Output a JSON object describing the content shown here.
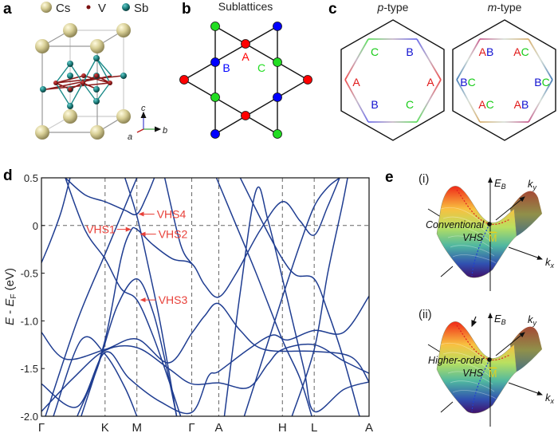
{
  "panel_labels": {
    "a": "a",
    "b": "b",
    "c": "c",
    "d": "d",
    "e": "e"
  },
  "panel_a": {
    "legend": [
      {
        "label": "Cs",
        "color": "#d8cf96"
      },
      {
        "label": "V",
        "color": "#7a1010"
      },
      {
        "label": "Sb",
        "color": "#1a7a78"
      }
    ],
    "axes": {
      "a": "a",
      "b": "b",
      "c": "c"
    }
  },
  "panel_b": {
    "title": "Sublattices",
    "labels": {
      "A": "A",
      "B": "B",
      "C": "C"
    },
    "colors": {
      "A": "#ff0000",
      "B": "#0000ff",
      "C": "#22dd22"
    }
  },
  "panel_c": {
    "p_type": {
      "title_italic": "p",
      "title_rest": "-type",
      "vertex_labels": [
        [
          "A"
        ],
        [
          "C"
        ],
        [
          "B"
        ],
        [
          "A"
        ],
        [
          "C"
        ],
        [
          "B"
        ]
      ]
    },
    "m_type": {
      "title_italic": "m",
      "title_rest": "-type",
      "vertex_labels": [
        [
          "B",
          "C"
        ],
        [
          "A",
          "B"
        ],
        [
          "A",
          "C"
        ],
        [
          "B",
          "C"
        ],
        [
          "A",
          "B"
        ],
        [
          "A",
          "C"
        ]
      ]
    }
  },
  "chart_data": {
    "type": "line",
    "title": "",
    "ylabel": "E - E_F (eV)",
    "ylabel_parts": {
      "E": "E",
      "mid": " - ",
      "EF": "E",
      "sub": "F",
      "unit": " (eV)"
    },
    "ylim": [
      -2.0,
      0.5
    ],
    "yticks": [
      0.5,
      0,
      -0.5,
      -1.0,
      -1.5,
      -2.0
    ],
    "ytick_labels": [
      "0.5",
      "0",
      "-0.5",
      "-1.0",
      "-1.5",
      "-2.0"
    ],
    "kpath": [
      {
        "label": "Γ",
        "k": 0
      },
      {
        "label": "K",
        "k": 0.8
      },
      {
        "label": "M",
        "k": 1.2
      },
      {
        "label": "Γ",
        "k": 1.89
      },
      {
        "label": "A",
        "k": 2.23
      },
      {
        "label": "H",
        "k": 3.03
      },
      {
        "label": "L",
        "k": 3.43
      },
      {
        "label": "A",
        "k": 4.12
      }
    ],
    "fermi_level": 0,
    "grid": "dashed vertical lines at high-symmetry points",
    "line_color": "#1f3d91",
    "bands": [
      [
        [
          0,
          -0.39
        ],
        [
          0.12,
          -0.15
        ],
        [
          0.25,
          0.15
        ],
        [
          0.36,
          0.5
        ]
      ],
      [
        [
          0.3,
          0.5
        ],
        [
          0.55,
          0.32
        ],
        [
          0.8,
          0.25
        ],
        [
          1.05,
          0.16
        ],
        [
          1.2,
          0.12
        ],
        [
          1.32,
          0.3
        ],
        [
          1.42,
          0.5
        ]
      ],
      [
        [
          0.5,
          -2.0
        ],
        [
          0.8,
          -1.2
        ],
        [
          1.0,
          -0.35
        ],
        [
          1.12,
          -0.06
        ],
        [
          1.2,
          -0.04
        ],
        [
          1.4,
          -0.2
        ],
        [
          1.65,
          -0.35
        ],
        [
          1.89,
          -0.4
        ],
        [
          2.05,
          -0.62
        ],
        [
          2.23,
          -0.75
        ],
        [
          2.45,
          -0.5
        ],
        [
          2.75,
          -0.05
        ],
        [
          3.03,
          0.25
        ],
        [
          3.25,
          0.05
        ],
        [
          3.43,
          -0.1
        ],
        [
          3.6,
          0.2
        ],
        [
          3.75,
          0.5
        ]
      ],
      [
        [
          0.3,
          0.5
        ],
        [
          0.55,
          -0.05
        ],
        [
          0.8,
          -0.35
        ],
        [
          1.0,
          -0.66
        ],
        [
          1.2,
          -0.78
        ],
        [
          1.4,
          -1.15
        ],
        [
          1.6,
          -1.62
        ],
        [
          1.75,
          -2.0
        ]
      ],
      [
        [
          0.45,
          -2.0
        ],
        [
          0.7,
          -1.5
        ],
        [
          0.95,
          -0.85
        ],
        [
          1.2,
          -0.56
        ],
        [
          1.4,
          -0.9
        ],
        [
          1.55,
          -1.4
        ],
        [
          1.7,
          -2.0
        ]
      ],
      [
        [
          0,
          -1.95
        ],
        [
          0.4,
          -1.6
        ],
        [
          0.8,
          -1.31
        ],
        [
          1.2,
          -1.28
        ],
        [
          1.6,
          -1.5
        ],
        [
          1.89,
          -1.66
        ],
        [
          2.23,
          -1.65
        ],
        [
          2.6,
          -1.7
        ],
        [
          2.85,
          -1.45
        ],
        [
          3.03,
          -1.3
        ],
        [
          3.43,
          -1.25
        ],
        [
          3.8,
          -1.42
        ],
        [
          4.12,
          -1.55
        ]
      ],
      [
        [
          0,
          -1.12
        ],
        [
          0.3,
          -1.4
        ],
        [
          0.8,
          -1.3
        ],
        [
          1.2,
          -1.19
        ],
        [
          1.6,
          -1.44
        ],
        [
          1.89,
          -1.13
        ],
        [
          2.05,
          -0.95
        ],
        [
          2.23,
          -0.82
        ],
        [
          2.5,
          -1.1
        ],
        [
          2.8,
          -1.3
        ],
        [
          3.43,
          -1.32
        ],
        [
          3.9,
          -1.38
        ],
        [
          4.12,
          -1.64
        ]
      ],
      [
        [
          0,
          -1.66
        ],
        [
          0.45,
          -1.9
        ],
        [
          0.8,
          -1.33
        ],
        [
          1.1,
          -1.6
        ],
        [
          1.5,
          -1.85
        ],
        [
          1.89,
          -1.96
        ],
        [
          2.1,
          -1.58
        ],
        [
          2.23,
          -1.53
        ],
        [
          2.6,
          -1.3
        ],
        [
          2.9,
          -1.15
        ],
        [
          3.1,
          -1.2
        ],
        [
          3.43,
          -1.1
        ],
        [
          3.8,
          -1.12
        ],
        [
          4.12,
          -0.74
        ]
      ],
      [
        [
          0.05,
          -2.0
        ],
        [
          0.45,
          -1.0
        ],
        [
          0.8,
          -0.3
        ],
        [
          1.05,
          0.2
        ],
        [
          1.2,
          0.5
        ]
      ],
      [
        [
          1.05,
          0.5
        ],
        [
          1.2,
          0.1
        ],
        [
          1.35,
          -0.45
        ],
        [
          1.5,
          -1.05
        ],
        [
          1.7,
          -2.0
        ]
      ],
      [
        [
          2.3,
          -2.0
        ],
        [
          2.5,
          -0.7
        ],
        [
          2.7,
          0.37
        ],
        [
          2.85,
          0.05
        ],
        [
          3.1,
          -0.8
        ],
        [
          3.3,
          -1.5
        ],
        [
          3.43,
          -1.95
        ],
        [
          3.8,
          -1.72
        ],
        [
          4.12,
          -1.64
        ]
      ],
      [
        [
          2.5,
          0.5
        ],
        [
          2.8,
          0.0
        ],
        [
          3.03,
          -0.35
        ],
        [
          3.2,
          -0.52
        ],
        [
          3.43,
          -0.56
        ],
        [
          3.6,
          -0.9
        ],
        [
          3.8,
          -1.4
        ],
        [
          4.0,
          -2.0
        ]
      ],
      [
        [
          2.55,
          -2.0
        ],
        [
          2.8,
          -1.35
        ],
        [
          3.03,
          -0.75
        ],
        [
          3.25,
          -0.2
        ],
        [
          3.43,
          0.2
        ],
        [
          3.6,
          0.4
        ],
        [
          3.75,
          0.5
        ]
      ],
      [
        [
          2.2,
          0.5
        ],
        [
          2.45,
          0.0
        ],
        [
          2.7,
          -0.5
        ],
        [
          3.03,
          -1.2
        ],
        [
          3.25,
          -1.6
        ],
        [
          3.4,
          -2.0
        ]
      ],
      [
        [
          3.15,
          -2.0
        ],
        [
          3.43,
          -1.3
        ],
        [
          3.6,
          -0.5
        ],
        [
          3.78,
          0.2
        ],
        [
          3.85,
          0.5
        ]
      ],
      [
        [
          0.15,
          -2.0
        ],
        [
          0.5,
          -1.2
        ],
        [
          0.8,
          -1.35
        ],
        [
          1.05,
          -1.7
        ],
        [
          1.2,
          -2.0
        ]
      ],
      [
        [
          1.55,
          0.5
        ],
        [
          1.75,
          -0.2
        ],
        [
          1.89,
          -0.4
        ]
      ]
    ],
    "annotations": [
      {
        "label": "VHS4",
        "k": 1.2,
        "E": 0.12,
        "side": "right"
      },
      {
        "label": "VHS1",
        "k": 1.15,
        "E": -0.04,
        "side": "left"
      },
      {
        "label": "VHS2",
        "k": 1.22,
        "E": -0.09,
        "side": "right"
      },
      {
        "label": "VHS3",
        "k": 1.22,
        "E": -0.78,
        "side": "right"
      }
    ],
    "annotation_color": "#e8413a"
  },
  "panel_e": {
    "i": {
      "tag": "(i)",
      "line1": "Conventional",
      "line2": "VHS"
    },
    "ii": {
      "tag": "(ii)",
      "line1": "Higher-order",
      "line2": "VHS"
    },
    "axis_E": "E",
    "axis_E_sub": "B",
    "axis_ky": "k",
    "axis_ky_sub": "y",
    "axis_kx": "k",
    "axis_kx_sub": "x",
    "point": "M",
    "point_color": "#e0d020"
  }
}
